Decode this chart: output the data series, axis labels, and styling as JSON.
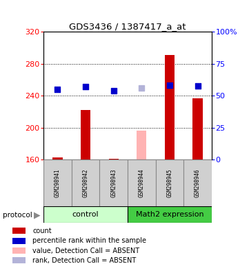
{
  "title": "GDS3436 / 1387417_a_at",
  "samples": [
    "GSM298941",
    "GSM298942",
    "GSM298943",
    "GSM298944",
    "GSM298945",
    "GSM298946"
  ],
  "bar_values": [
    163,
    222,
    161,
    null,
    291,
    237
  ],
  "bar_absent_values": [
    null,
    null,
    null,
    196,
    null,
    null
  ],
  "dot_values": [
    248,
    251,
    246,
    null,
    253,
    252
  ],
  "dot_absent_values": [
    null,
    null,
    null,
    250,
    null,
    null
  ],
  "bar_color": "#cc0000",
  "bar_absent_color": "#ffb3b3",
  "dot_color": "#0000cc",
  "dot_absent_color": "#b3b3d8",
  "ylim_left": [
    160,
    320
  ],
  "ylim_right": [
    0,
    100
  ],
  "yticks_left": [
    160,
    200,
    240,
    280,
    320
  ],
  "yticks_right": [
    0,
    25,
    50,
    75,
    100
  ],
  "ytick_labels_right": [
    "0",
    "25",
    "50",
    "75",
    "100%"
  ],
  "protocol_label": "protocol",
  "control_color": "#ccffcc",
  "math2_color": "#44cc44",
  "legend_items": [
    {
      "label": "count",
      "color": "#cc0000"
    },
    {
      "label": "percentile rank within the sample",
      "color": "#0000cc"
    },
    {
      "label": "value, Detection Call = ABSENT",
      "color": "#ffb3b3"
    },
    {
      "label": "rank, Detection Call = ABSENT",
      "color": "#b3b3d8"
    }
  ],
  "bar_width": 0.35,
  "dot_size": 40,
  "sample_box_color": "#d0d0d0",
  "sample_box_edge": "#888888"
}
